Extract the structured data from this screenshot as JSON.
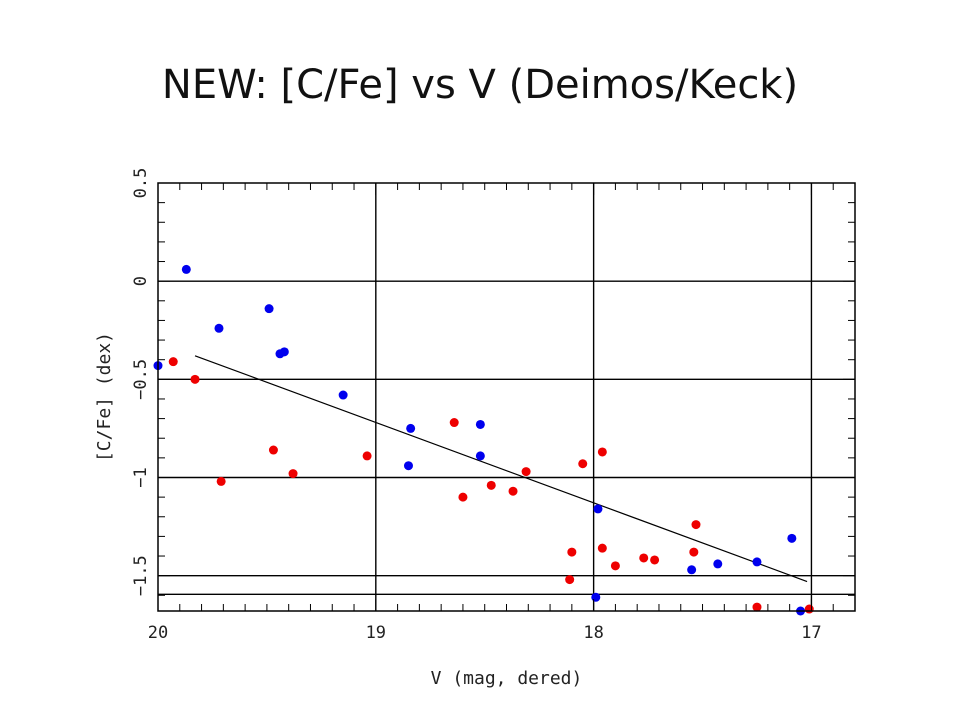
{
  "slide": {
    "title": "NEW: [C/Fe] vs V (Deimos/Keck)"
  },
  "chart_data": {
    "type": "scatter",
    "title": "",
    "xlabel": "V (mag, dered)",
    "ylabel": "[C/Fe] (dex)",
    "xlim": [
      20.0,
      16.8
    ],
    "ylim": [
      -1.68,
      0.5
    ],
    "x_reversed": true,
    "xticks": [
      20,
      19,
      18,
      17
    ],
    "xtick_labels": [
      "20",
      "19",
      "18",
      "17"
    ],
    "yticks": [
      0.5,
      0,
      -0.5,
      -1,
      -1.5
    ],
    "ytick_labels": [
      "0.5",
      "0",
      "−0.5",
      "−1",
      "−1.5"
    ],
    "hlines": [
      0,
      -0.5,
      -1,
      -1.5
    ],
    "vlines": [
      19,
      18,
      17
    ],
    "grid": true,
    "legend": "none",
    "series": [
      {
        "color": "#0000ee",
        "points": [
          {
            "x": 20.0,
            "y": -0.43
          },
          {
            "x": 19.87,
            "y": 0.06
          },
          {
            "x": 19.72,
            "y": -0.24
          },
          {
            "x": 19.49,
            "y": -0.14
          },
          {
            "x": 19.44,
            "y": -0.37
          },
          {
            "x": 19.42,
            "y": -0.36
          },
          {
            "x": 19.15,
            "y": -0.58
          },
          {
            "x": 18.84,
            "y": -0.75
          },
          {
            "x": 18.85,
            "y": -0.94
          },
          {
            "x": 18.52,
            "y": -0.73
          },
          {
            "x": 18.52,
            "y": -0.89
          },
          {
            "x": 17.98,
            "y": -1.16
          },
          {
            "x": 17.99,
            "y": -1.61
          },
          {
            "x": 17.55,
            "y": -1.47
          },
          {
            "x": 17.43,
            "y": -1.44
          },
          {
            "x": 17.25,
            "y": -1.43
          },
          {
            "x": 17.09,
            "y": -1.31
          },
          {
            "x": 17.05,
            "y": -1.68
          }
        ]
      },
      {
        "color": "#ee0000",
        "points": [
          {
            "x": 19.93,
            "y": -0.41
          },
          {
            "x": 19.83,
            "y": -0.5
          },
          {
            "x": 19.71,
            "y": -1.02
          },
          {
            "x": 19.47,
            "y": -0.86
          },
          {
            "x": 19.38,
            "y": -0.98
          },
          {
            "x": 19.04,
            "y": -0.89
          },
          {
            "x": 18.64,
            "y": -0.72
          },
          {
            "x": 18.6,
            "y": -1.1
          },
          {
            "x": 18.47,
            "y": -1.04
          },
          {
            "x": 18.37,
            "y": -1.07
          },
          {
            "x": 18.31,
            "y": -0.97
          },
          {
            "x": 18.11,
            "y": -1.52
          },
          {
            "x": 18.1,
            "y": -1.38
          },
          {
            "x": 18.05,
            "y": -0.93
          },
          {
            "x": 17.96,
            "y": -0.87
          },
          {
            "x": 17.96,
            "y": -1.36
          },
          {
            "x": 17.9,
            "y": -1.45
          },
          {
            "x": 17.77,
            "y": -1.41
          },
          {
            "x": 17.72,
            "y": -1.42
          },
          {
            "x": 17.54,
            "y": -1.38
          },
          {
            "x": 17.53,
            "y": -1.24
          },
          {
            "x": 17.25,
            "y": -1.66
          },
          {
            "x": 17.01,
            "y": -1.67
          }
        ]
      }
    ],
    "fit_line": {
      "color": "#000000",
      "x": [
        19.83,
        17.02
      ],
      "y": [
        -0.38,
        -1.53
      ]
    }
  }
}
